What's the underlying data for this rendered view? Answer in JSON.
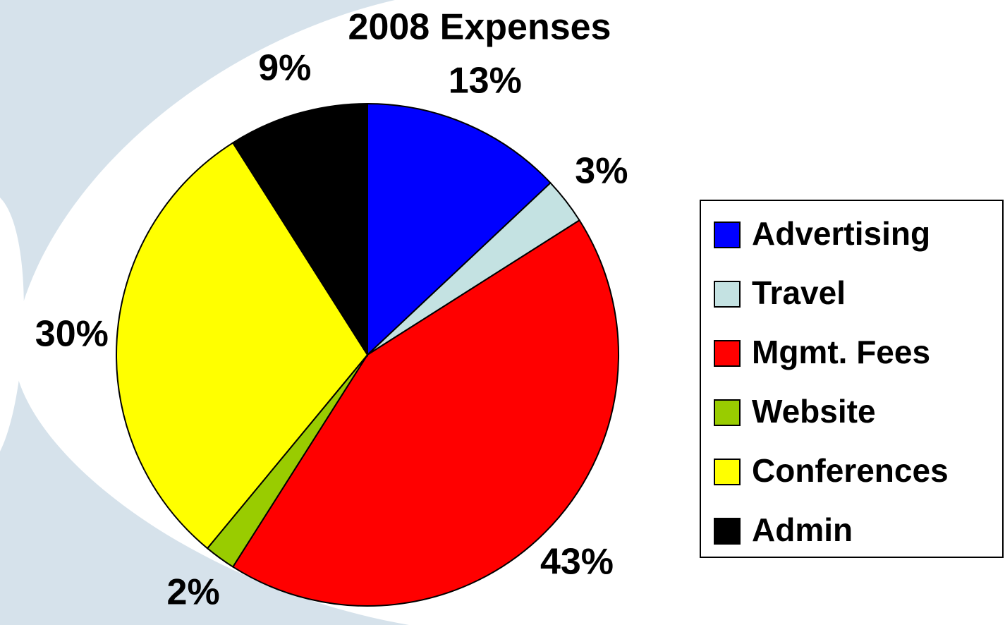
{
  "chart_data": {
    "type": "pie",
    "title": "2008 Expenses",
    "categories": [
      "Advertising",
      "Travel",
      "Mgmt. Fees",
      "Website",
      "Conferences",
      "Admin"
    ],
    "values": [
      13,
      3,
      43,
      2,
      30,
      9
    ],
    "value_labels": [
      "13%",
      "3%",
      "43%",
      "2%",
      "30%",
      "9%"
    ],
    "colors": [
      "#0000ff",
      "#c4e2e2",
      "#ff0000",
      "#99cc00",
      "#ffff00",
      "#000000"
    ],
    "legend": "right"
  }
}
